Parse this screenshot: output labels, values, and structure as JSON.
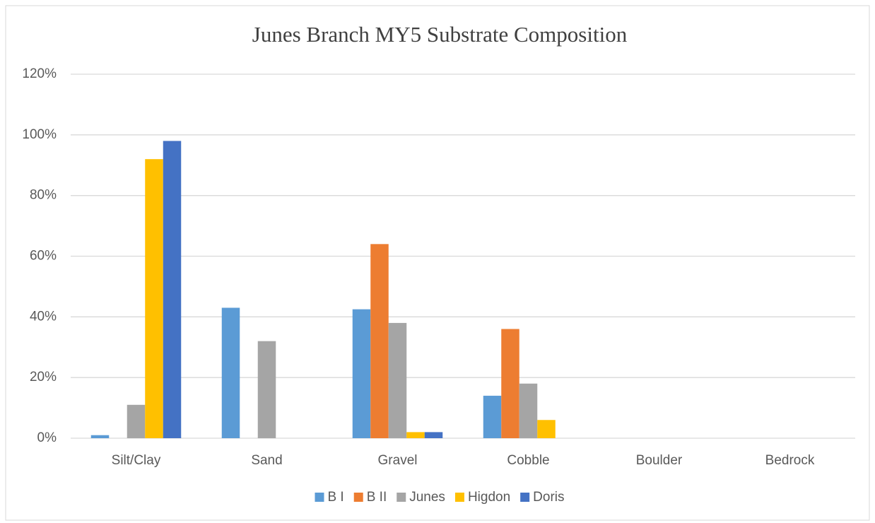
{
  "chart_data": {
    "type": "bar",
    "title": "Junes Branch MY5 Substrate Composition",
    "categories": [
      "Silt/Clay",
      "Sand",
      "Gravel",
      "Cobble",
      "Boulder",
      "Bedrock"
    ],
    "series": [
      {
        "name": "B I",
        "color": "#5b9bd5",
        "values": [
          1,
          43,
          42.5,
          14,
          0,
          0
        ]
      },
      {
        "name": "B II",
        "color": "#ed7d31",
        "values": [
          0,
          0,
          64,
          36,
          0,
          0
        ]
      },
      {
        "name": "Junes",
        "color": "#a5a5a5",
        "values": [
          11,
          32,
          38,
          18,
          0,
          0
        ]
      },
      {
        "name": "Higdon",
        "color": "#ffc000",
        "values": [
          92,
          0,
          2,
          6,
          0,
          0
        ]
      },
      {
        "name": "Doris",
        "color": "#4472c4",
        "values": [
          98,
          0,
          2,
          0,
          0,
          0
        ]
      }
    ],
    "ylim": [
      0,
      120
    ],
    "yticks": [
      {
        "value": 0,
        "label": "0%"
      },
      {
        "value": 20,
        "label": "20%"
      },
      {
        "value": 40,
        "label": "40%"
      },
      {
        "value": 60,
        "label": "60%"
      },
      {
        "value": 80,
        "label": "80%"
      },
      {
        "value": 100,
        "label": "100%"
      },
      {
        "value": 120,
        "label": "120%"
      }
    ],
    "grid": true,
    "legend": "bottom"
  }
}
